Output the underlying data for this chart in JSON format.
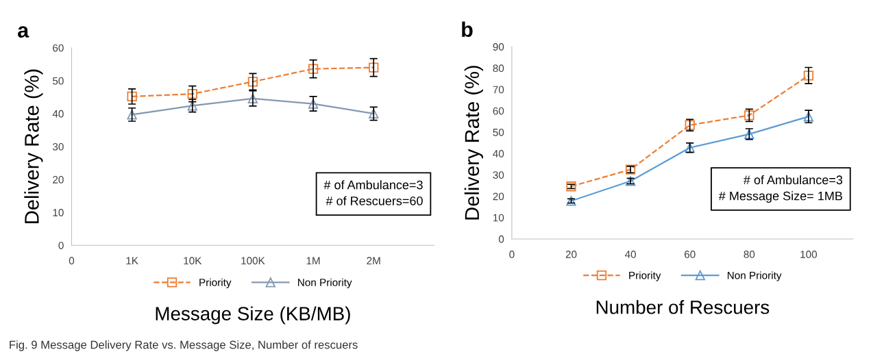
{
  "chart_data": [
    {
      "type": "line",
      "xlabel": "Message Size (KB/MB)",
      "ylabel": "Delivery Rate (%)",
      "categories": [
        "0",
        "1K",
        "10K",
        "100K",
        "1M",
        "2M"
      ],
      "ylim": [
        0,
        60
      ],
      "yticks": [
        0,
        10,
        20,
        30,
        40,
        50,
        60
      ],
      "series": [
        {
          "name": "Priority",
          "color": "#ed7d31",
          "marker": "square",
          "line_style": "dashed",
          "values": [
            null,
            45.2,
            46.0,
            49.7,
            53.6,
            54.0
          ],
          "errors": [
            null,
            2.3,
            2.4,
            2.5,
            2.7,
            2.7
          ]
        },
        {
          "name": "Non Priority",
          "color": "#8497b0",
          "marker": "triangle",
          "line_style": "solid",
          "values": [
            null,
            39.7,
            42.4,
            44.6,
            43.0,
            40.0
          ],
          "errors": [
            null,
            2.0,
            1.9,
            2.3,
            2.2,
            2.0
          ]
        }
      ],
      "legend": "bottom",
      "grid": false,
      "annotations": [
        "a",
        "# of Ambulance=3\n# of Rescuers=60",
        "Fig. 9 Message Delivery Rate vs. Message Size, Number of rescuers"
      ]
    },
    {
      "type": "line",
      "xlabel": "Number of Rescuers",
      "ylabel": "Delivery Rate (%)",
      "x": [
        20,
        40,
        60,
        80,
        100
      ],
      "xlim": [
        0,
        115
      ],
      "xticks": [
        0,
        20,
        40,
        60,
        80,
        100
      ],
      "ylim": [
        0,
        90
      ],
      "yticks": [
        0,
        10,
        20,
        30,
        40,
        50,
        60,
        70,
        80,
        90
      ],
      "series": [
        {
          "name": "Priority",
          "color": "#ed7d31",
          "marker": "square",
          "line_style": "dashed",
          "values": [
            24.6,
            32.5,
            53.3,
            57.9,
            76.5
          ],
          "errors": [
            1.0,
            1.5,
            2.7,
            2.9,
            3.8
          ]
        },
        {
          "name": "Non Priority",
          "color": "#5b9bd5",
          "marker": "triangle",
          "line_style": "solid",
          "values": [
            17.8,
            27.1,
            42.7,
            49.1,
            57.3
          ],
          "errors": [
            1.0,
            1.3,
            2.2,
            2.5,
            2.9
          ]
        }
      ],
      "legend": "bottom",
      "grid": false,
      "annotations": [
        "b",
        "# of Ambulance=3\n# Message Size= 1MB"
      ]
    }
  ]
}
